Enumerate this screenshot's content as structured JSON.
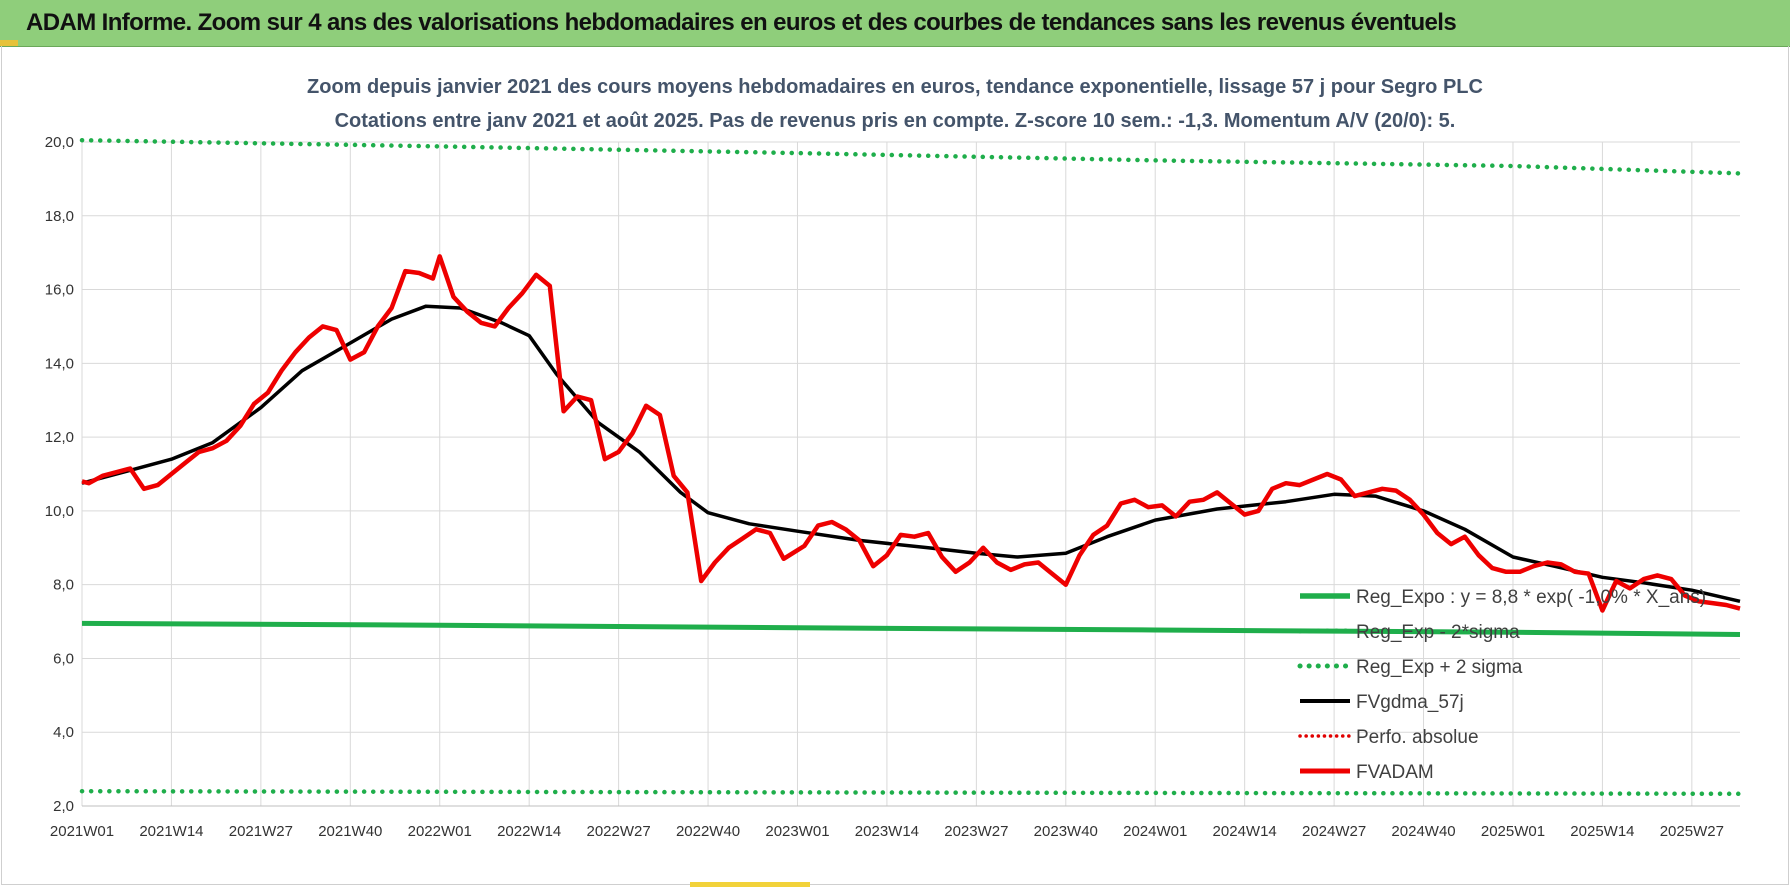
{
  "banner": {
    "title": "ADAM Informe. Zoom sur 4 ans des valorisations hebdomadaires en euros et des courbes de tendances sans les revenus éventuels"
  },
  "colors": {
    "banner_bg": "#8fce7b",
    "reg_expo": "#1fae4b",
    "reg_band": "#1fae4b",
    "fvgdma": "#000000",
    "perfo": "#e00000",
    "fvadam": "#ee0000",
    "grid": "#d9d9d9"
  },
  "chart_data": {
    "type": "line",
    "title": "Zoom depuis janvier 2021 des cours moyens hebdomadaires en euros, tendance exponentielle, lissage 57 j pour Segro PLC",
    "subtitle": "Cotations entre janv 2021 et août 2025.  Pas de revenus pris en compte. Z-score 10 sem.: -1,3. Momentum A/V (20/0): 5.",
    "x_tick_labels": [
      "2021W01",
      "2021W14",
      "2021W27",
      "2021W40",
      "2022W01",
      "2022W14",
      "2022W27",
      "2022W40",
      "2023W01",
      "2023W14",
      "2023W27",
      "2023W40",
      "2024W01",
      "2024W14",
      "2024W27",
      "2024W40",
      "2025W01",
      "2025W14",
      "2025W27"
    ],
    "x_range": [
      "2021W01",
      "2025W34"
    ],
    "ylim": [
      2.0,
      20.0
    ],
    "y_ticks": [
      "2,0",
      "4,0",
      "6,0",
      "8,0",
      "10,0",
      "12,0",
      "14,0",
      "16,0",
      "18,0",
      "20,0"
    ],
    "grid": true,
    "legend_position": "bottom-right",
    "series": [
      {
        "name": "Reg_Expo : y = 8,8 * exp( -1,0% * X_ans)",
        "style": "solid-thick",
        "points": [
          [
            "2021W01",
            6.95
          ],
          [
            "2022W01",
            6.9
          ],
          [
            "2023W01",
            6.83
          ],
          [
            "2024W01",
            6.77
          ],
          [
            "2025W01",
            6.71
          ],
          [
            "2025W34",
            6.65
          ]
        ]
      },
      {
        "name": "Reg_Exp - 2*sigma",
        "style": "dotted",
        "points": [
          [
            "2021W01",
            2.4
          ],
          [
            "2023W01",
            2.37
          ],
          [
            "2025W34",
            2.33
          ]
        ]
      },
      {
        "name": "Reg_Exp + 2 sigma",
        "style": "dotted",
        "points": [
          [
            "2021W01",
            20.05
          ],
          [
            "2022W01",
            19.88
          ],
          [
            "2023W01",
            19.7
          ],
          [
            "2024W01",
            19.5
          ],
          [
            "2025W01",
            19.35
          ],
          [
            "2025W34",
            19.15
          ]
        ]
      },
      {
        "name": "FVgdma_57j",
        "style": "solid",
        "points": [
          [
            "2021W01",
            10.75
          ],
          [
            "2021W07",
            11.05
          ],
          [
            "2021W14",
            11.4
          ],
          [
            "2021W20",
            11.85
          ],
          [
            "2021W27",
            12.8
          ],
          [
            "2021W33",
            13.8
          ],
          [
            "2021W40",
            14.55
          ],
          [
            "2021W46",
            15.2
          ],
          [
            "2021W51",
            15.55
          ],
          [
            "2022W04",
            15.5
          ],
          [
            "2022W10",
            15.1
          ],
          [
            "2022W14",
            14.75
          ],
          [
            "2022W18",
            13.7
          ],
          [
            "2022W24",
            12.4
          ],
          [
            "2022W30",
            11.6
          ],
          [
            "2022W36",
            10.5
          ],
          [
            "2022W40",
            9.95
          ],
          [
            "2022W46",
            9.65
          ],
          [
            "2023W01",
            9.45
          ],
          [
            "2023W10",
            9.2
          ],
          [
            "2023W20",
            9.0
          ],
          [
            "2023W27",
            8.85
          ],
          [
            "2023W33",
            8.75
          ],
          [
            "2023W40",
            8.85
          ],
          [
            "2023W46",
            9.3
          ],
          [
            "2024W01",
            9.75
          ],
          [
            "2024W10",
            10.05
          ],
          [
            "2024W20",
            10.25
          ],
          [
            "2024W27",
            10.45
          ],
          [
            "2024W33",
            10.4
          ],
          [
            "2024W40",
            10.0
          ],
          [
            "2024W46",
            9.5
          ],
          [
            "2025W01",
            8.75
          ],
          [
            "2025W07",
            8.5
          ],
          [
            "2025W14",
            8.2
          ],
          [
            "2025W20",
            8.05
          ],
          [
            "2025W27",
            7.85
          ],
          [
            "2025W34",
            7.55
          ]
        ]
      },
      {
        "name": "Perfo. absolue",
        "style": "dotted",
        "points": []
      },
      {
        "name": "FVADAM",
        "style": "solid-thick",
        "points": [
          [
            "2021W01",
            10.8
          ],
          [
            "2021W02",
            10.75
          ],
          [
            "2021W04",
            10.95
          ],
          [
            "2021W06",
            11.05
          ],
          [
            "2021W08",
            11.15
          ],
          [
            "2021W10",
            10.6
          ],
          [
            "2021W12",
            10.7
          ],
          [
            "2021W14",
            11.0
          ],
          [
            "2021W16",
            11.3
          ],
          [
            "2021W18",
            11.6
          ],
          [
            "2021W20",
            11.7
          ],
          [
            "2021W22",
            11.9
          ],
          [
            "2021W24",
            12.3
          ],
          [
            "2021W26",
            12.9
          ],
          [
            "2021W28",
            13.2
          ],
          [
            "2021W30",
            13.8
          ],
          [
            "2021W32",
            14.3
          ],
          [
            "2021W34",
            14.7
          ],
          [
            "2021W36",
            15.0
          ],
          [
            "2021W38",
            14.9
          ],
          [
            "2021W40",
            14.1
          ],
          [
            "2021W42",
            14.3
          ],
          [
            "2021W44",
            15.0
          ],
          [
            "2021W46",
            15.5
          ],
          [
            "2021W48",
            16.5
          ],
          [
            "2021W50",
            16.45
          ],
          [
            "2021W52",
            16.3
          ],
          [
            "2022W01",
            16.9
          ],
          [
            "2022W03",
            15.8
          ],
          [
            "2022W05",
            15.4
          ],
          [
            "2022W07",
            15.1
          ],
          [
            "2022W09",
            15.0
          ],
          [
            "2022W11",
            15.5
          ],
          [
            "2022W13",
            15.9
          ],
          [
            "2022W15",
            16.4
          ],
          [
            "2022W17",
            16.1
          ],
          [
            "2022W19",
            12.7
          ],
          [
            "2022W21",
            13.1
          ],
          [
            "2022W23",
            13.0
          ],
          [
            "2022W25",
            11.4
          ],
          [
            "2022W27",
            11.6
          ],
          [
            "2022W29",
            12.1
          ],
          [
            "2022W31",
            12.85
          ],
          [
            "2022W33",
            12.6
          ],
          [
            "2022W35",
            10.95
          ],
          [
            "2022W37",
            10.5
          ],
          [
            "2022W39",
            8.1
          ],
          [
            "2022W41",
            8.6
          ],
          [
            "2022W43",
            9.0
          ],
          [
            "2022W45",
            9.25
          ],
          [
            "2022W47",
            9.5
          ],
          [
            "2022W49",
            9.4
          ],
          [
            "2022W51",
            8.7
          ],
          [
            "2023W02",
            9.05
          ],
          [
            "2023W04",
            9.6
          ],
          [
            "2023W06",
            9.7
          ],
          [
            "2023W08",
            9.5
          ],
          [
            "2023W10",
            9.2
          ],
          [
            "2023W12",
            8.5
          ],
          [
            "2023W14",
            8.8
          ],
          [
            "2023W16",
            9.35
          ],
          [
            "2023W18",
            9.3
          ],
          [
            "2023W20",
            9.4
          ],
          [
            "2023W22",
            8.75
          ],
          [
            "2023W24",
            8.35
          ],
          [
            "2023W26",
            8.6
          ],
          [
            "2023W28",
            9.0
          ],
          [
            "2023W30",
            8.6
          ],
          [
            "2023W32",
            8.4
          ],
          [
            "2023W34",
            8.55
          ],
          [
            "2023W36",
            8.6
          ],
          [
            "2023W38",
            8.3
          ],
          [
            "2023W40",
            8.0
          ],
          [
            "2023W42",
            8.8
          ],
          [
            "2023W44",
            9.35
          ],
          [
            "2023W46",
            9.6
          ],
          [
            "2023W48",
            10.2
          ],
          [
            "2023W50",
            10.3
          ],
          [
            "2023W52",
            10.1
          ],
          [
            "2024W02",
            10.15
          ],
          [
            "2024W04",
            9.85
          ],
          [
            "2024W06",
            10.25
          ],
          [
            "2024W08",
            10.3
          ],
          [
            "2024W10",
            10.5
          ],
          [
            "2024W12",
            10.2
          ],
          [
            "2024W14",
            9.9
          ],
          [
            "2024W16",
            10.0
          ],
          [
            "2024W18",
            10.6
          ],
          [
            "2024W20",
            10.75
          ],
          [
            "2024W22",
            10.7
          ],
          [
            "2024W24",
            10.85
          ],
          [
            "2024W26",
            11.0
          ],
          [
            "2024W28",
            10.85
          ],
          [
            "2024W30",
            10.4
          ],
          [
            "2024W32",
            10.5
          ],
          [
            "2024W34",
            10.6
          ],
          [
            "2024W36",
            10.55
          ],
          [
            "2024W38",
            10.3
          ],
          [
            "2024W40",
            9.9
          ],
          [
            "2024W42",
            9.4
          ],
          [
            "2024W44",
            9.1
          ],
          [
            "2024W46",
            9.3
          ],
          [
            "2024W48",
            8.8
          ],
          [
            "2024W50",
            8.45
          ],
          [
            "2024W52",
            8.35
          ],
          [
            "2025W02",
            8.35
          ],
          [
            "2025W04",
            8.5
          ],
          [
            "2025W06",
            8.6
          ],
          [
            "2025W08",
            8.55
          ],
          [
            "2025W10",
            8.35
          ],
          [
            "2025W12",
            8.3
          ],
          [
            "2025W14",
            7.3
          ],
          [
            "2025W16",
            8.1
          ],
          [
            "2025W18",
            7.9
          ],
          [
            "2025W20",
            8.15
          ],
          [
            "2025W22",
            8.25
          ],
          [
            "2025W24",
            8.15
          ],
          [
            "2025W26",
            7.7
          ],
          [
            "2025W28",
            7.55
          ],
          [
            "2025W30",
            7.5
          ],
          [
            "2025W32",
            7.45
          ],
          [
            "2025W34",
            7.35
          ]
        ]
      }
    ]
  }
}
